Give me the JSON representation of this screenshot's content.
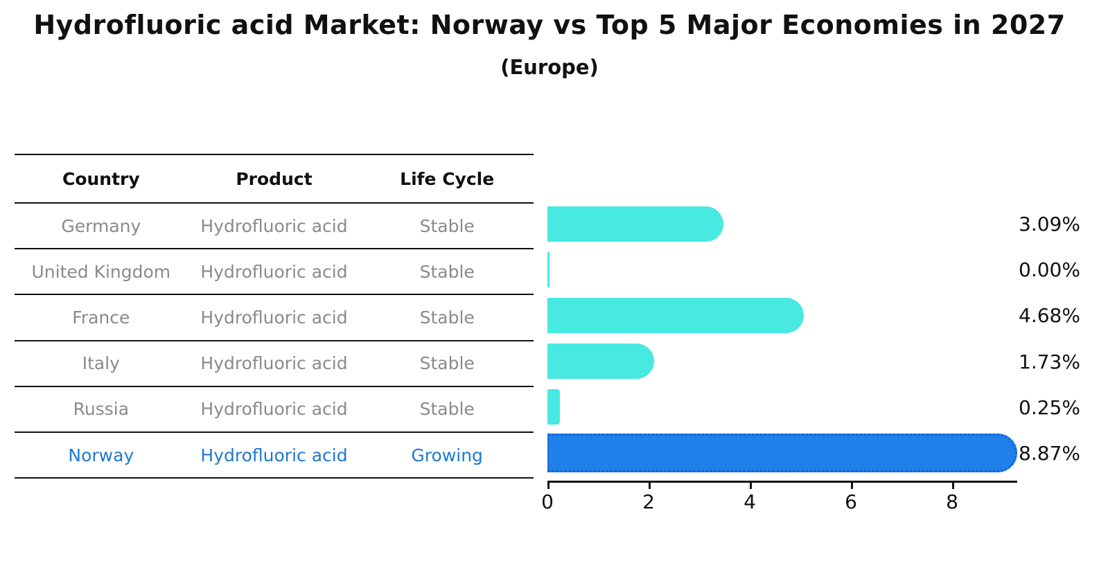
{
  "title": "Hydrofluoric acid Market: Norway vs Top 5 Major Economies in 2027",
  "subtitle": "(Europe)",
  "table": {
    "headers": [
      "Country",
      "Product",
      "Life Cycle"
    ],
    "rows": [
      {
        "country": "Germany",
        "product": "Hydrofluoric acid",
        "life_cycle": "Stable",
        "highlight": false
      },
      {
        "country": "United Kingdom",
        "product": "Hydrofluoric acid",
        "life_cycle": "Stable",
        "highlight": false
      },
      {
        "country": "France",
        "product": "Hydrofluoric acid",
        "life_cycle": "Stable",
        "highlight": false
      },
      {
        "country": "Italy",
        "product": "Hydrofluoric acid",
        "life_cycle": "Stable",
        "highlight": false
      },
      {
        "country": "Russia",
        "product": "Hydrofluoric acid",
        "life_cycle": "Stable",
        "highlight": false
      },
      {
        "country": "Norway",
        "product": "Hydrofluoric acid",
        "life_cycle": "Growing",
        "highlight": true
      }
    ]
  },
  "chart_data": {
    "type": "bar",
    "orientation": "horizontal",
    "title": "Hydrofluoric acid Market: Norway vs Top 5 Major Economies in 2027",
    "subtitle": "(Europe)",
    "categories": [
      "Germany",
      "United Kingdom",
      "France",
      "Italy",
      "Russia",
      "Norway"
    ],
    "values": [
      3.09,
      0.0,
      4.68,
      1.73,
      0.25,
      8.87
    ],
    "value_labels": [
      "3.09%",
      "0.00%",
      "4.68%",
      "1.73%",
      "0.25%",
      "8.87%"
    ],
    "unit": "%",
    "x_ticks": [
      "0",
      "2",
      "4",
      "6",
      "8"
    ],
    "xlim": [
      0,
      9.3
    ],
    "grid": false,
    "legend": false,
    "highlight_index": 5,
    "colors": {
      "bar": "#47E9E1",
      "highlight_bar": "#1E80E8",
      "highlight_border": "#1463D6",
      "highlight_text": "#1E79D2",
      "table_text": "#8A8A8A",
      "text": "#111111",
      "axis": "#111111"
    }
  }
}
